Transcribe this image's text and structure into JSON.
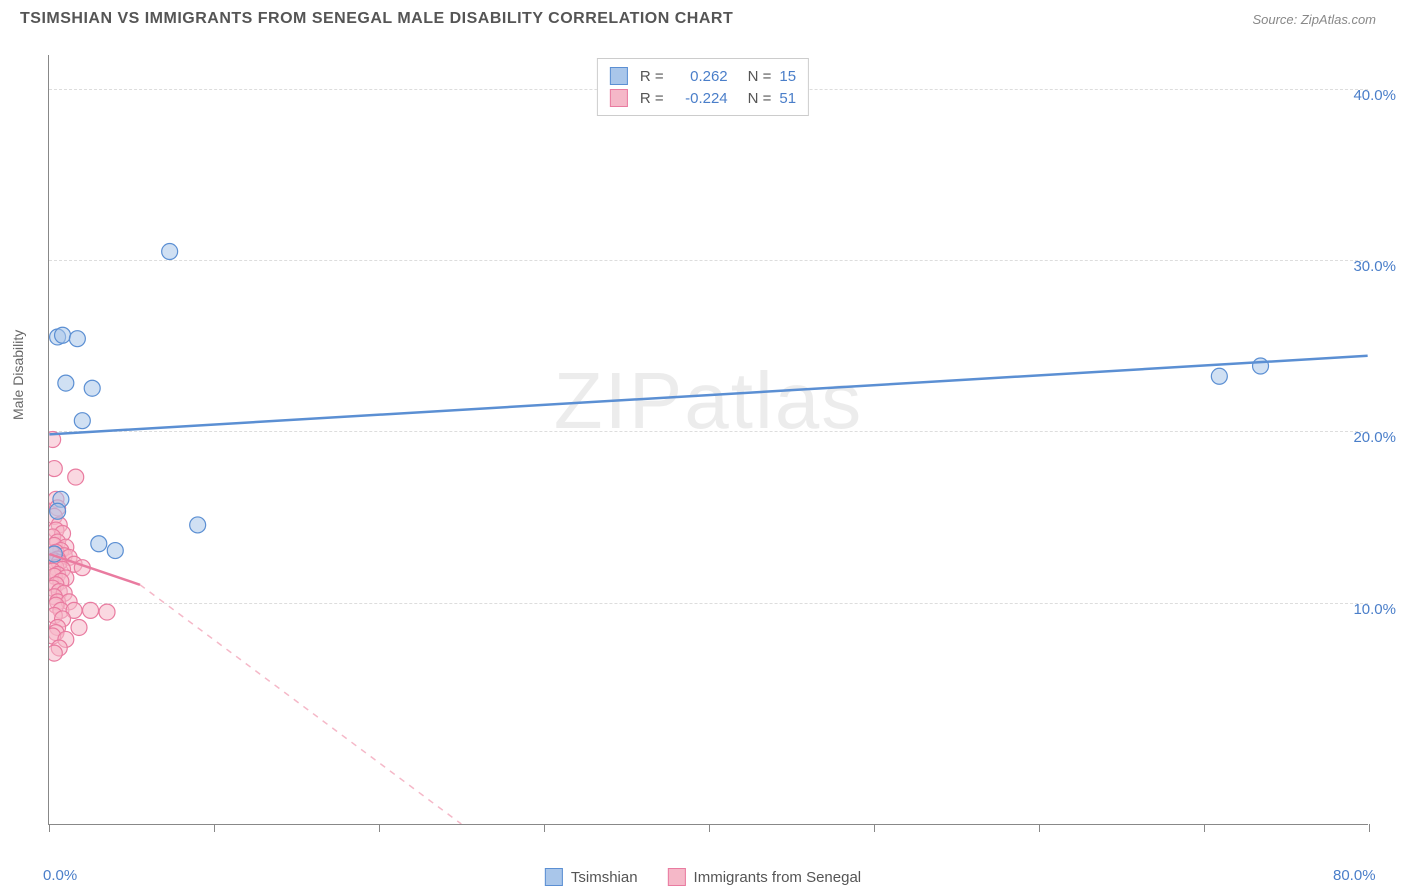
{
  "header": {
    "title": "TSIMSHIAN VS IMMIGRANTS FROM SENEGAL MALE DISABILITY CORRELATION CHART",
    "source": "Source: ZipAtlas.com"
  },
  "watermark": "ZIPatlas",
  "chart": {
    "type": "scatter",
    "ylabel": "Male Disability",
    "xlim": [
      0,
      80
    ],
    "ylim": [
      -3,
      42
    ],
    "x_ticks": [
      0,
      10,
      20,
      30,
      40,
      50,
      60,
      70,
      80
    ],
    "x_tick_labels": {
      "0": "0.0%",
      "80": "80.0%"
    },
    "y_gridlines": [
      10,
      20,
      30,
      40
    ],
    "y_tick_labels": {
      "10": "10.0%",
      "20": "20.0%",
      "30": "30.0%",
      "40": "40.0%"
    },
    "background_color": "#ffffff",
    "grid_color": "#dddddd",
    "axis_color": "#888888",
    "label_color": "#4a7ec9",
    "marker_radius": 8,
    "marker_opacity": 0.55,
    "series": [
      {
        "name": "Tsimshian",
        "color_fill": "#a9c6ea",
        "color_stroke": "#5b8fd3",
        "R": "0.262",
        "N": "15",
        "trend": {
          "x1": 0,
          "y1": 19.8,
          "x2": 80,
          "y2": 24.4,
          "dash": false,
          "width": 2.5
        },
        "points": [
          [
            0.5,
            25.5
          ],
          [
            0.8,
            25.6
          ],
          [
            1.7,
            25.4
          ],
          [
            2.6,
            22.5
          ],
          [
            1.0,
            22.8
          ],
          [
            2.0,
            20.6
          ],
          [
            7.3,
            30.5
          ],
          [
            0.7,
            16.0
          ],
          [
            0.5,
            15.3
          ],
          [
            3.0,
            13.4
          ],
          [
            4.0,
            13.0
          ],
          [
            9.0,
            14.5
          ],
          [
            71.0,
            23.2
          ],
          [
            73.5,
            23.8
          ],
          [
            0.3,
            12.8
          ]
        ]
      },
      {
        "name": "Immigrants from Senegal",
        "color_fill": "#f5b8c8",
        "color_stroke": "#e97ba0",
        "R": "-0.224",
        "N": "51",
        "trend_solid": {
          "x1": 0,
          "y1": 12.8,
          "x2": 5.5,
          "y2": 11.0,
          "width": 2.5
        },
        "trend_dash": {
          "x1": 5.5,
          "y1": 11.0,
          "x2": 25,
          "y2": -3
        },
        "points": [
          [
            0.2,
            19.5
          ],
          [
            0.3,
            17.8
          ],
          [
            1.6,
            17.3
          ],
          [
            0.4,
            16.0
          ],
          [
            0.5,
            15.5
          ],
          [
            0.3,
            15.0
          ],
          [
            0.6,
            14.5
          ],
          [
            0.4,
            14.2
          ],
          [
            0.8,
            14.0
          ],
          [
            0.2,
            13.8
          ],
          [
            0.5,
            13.5
          ],
          [
            0.3,
            13.3
          ],
          [
            1.0,
            13.2
          ],
          [
            0.7,
            13.0
          ],
          [
            0.4,
            12.9
          ],
          [
            0.2,
            12.8
          ],
          [
            0.9,
            12.7
          ],
          [
            1.2,
            12.6
          ],
          [
            0.5,
            12.5
          ],
          [
            0.3,
            12.4
          ],
          [
            0.6,
            12.3
          ],
          [
            1.5,
            12.2
          ],
          [
            0.4,
            12.0
          ],
          [
            2.0,
            12.0
          ],
          [
            0.8,
            11.9
          ],
          [
            0.2,
            11.8
          ],
          [
            0.5,
            11.6
          ],
          [
            0.3,
            11.5
          ],
          [
            1.0,
            11.4
          ],
          [
            0.7,
            11.2
          ],
          [
            0.4,
            11.0
          ],
          [
            0.2,
            10.8
          ],
          [
            0.6,
            10.6
          ],
          [
            0.9,
            10.5
          ],
          [
            0.3,
            10.3
          ],
          [
            0.5,
            10.0
          ],
          [
            1.2,
            10.0
          ],
          [
            0.4,
            9.8
          ],
          [
            0.7,
            9.5
          ],
          [
            1.5,
            9.5
          ],
          [
            2.5,
            9.5
          ],
          [
            3.5,
            9.4
          ],
          [
            0.3,
            9.2
          ],
          [
            0.8,
            9.0
          ],
          [
            0.5,
            8.5
          ],
          [
            1.8,
            8.5
          ],
          [
            0.4,
            8.2
          ],
          [
            0.2,
            8.0
          ],
          [
            1.0,
            7.8
          ],
          [
            0.6,
            7.3
          ],
          [
            0.3,
            7.0
          ]
        ]
      }
    ]
  },
  "legend_bottom": [
    {
      "label": "Tsimshian",
      "fill": "#a9c6ea",
      "stroke": "#5b8fd3"
    },
    {
      "label": "Immigrants from Senegal",
      "fill": "#f5b8c8",
      "stroke": "#e97ba0"
    }
  ]
}
